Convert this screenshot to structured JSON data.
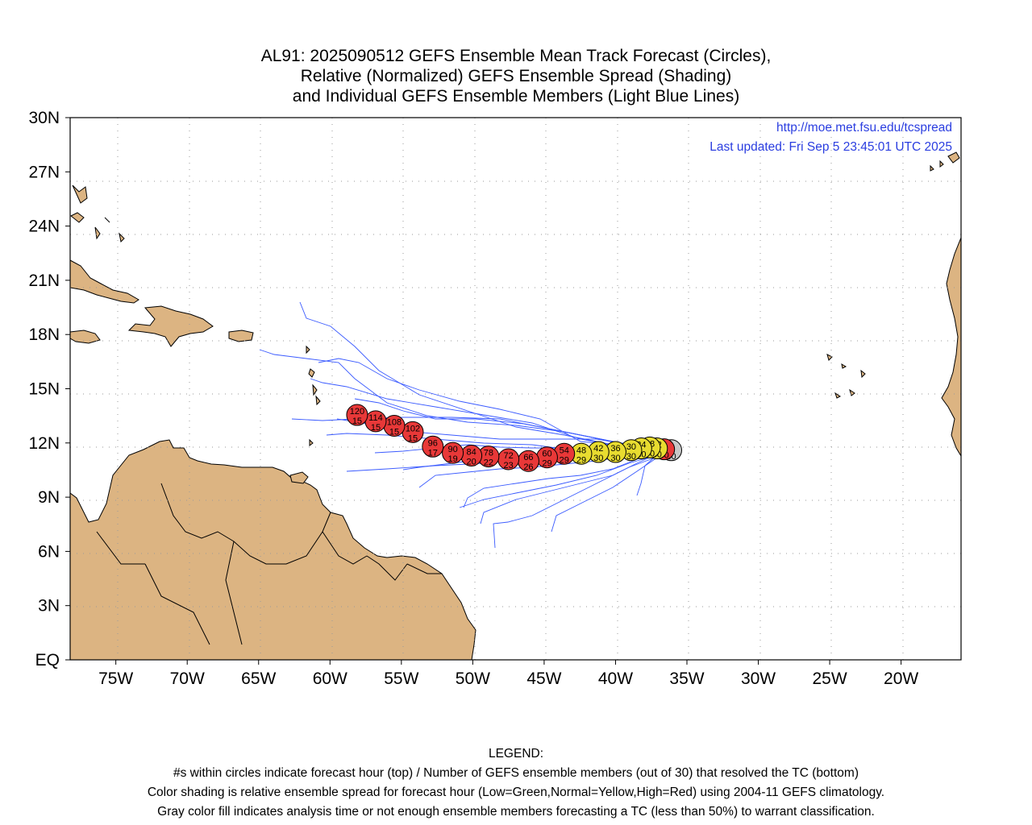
{
  "title": [
    "AL91: 2025090512 GEFS Ensemble Mean Track Forecast (Circles),",
    "Relative (Normalized) GEFS Ensemble Spread (Shading)",
    "and Individual GEFS Ensemble Members (Light Blue Lines)"
  ],
  "info": {
    "url": "http://moe.met.fsu.edu/tcspread",
    "updated": "Last updated: Fri Sep 5 23:45:01 UTC 2025"
  },
  "map": {
    "lon_range": [
      -78.2,
      -15.8
    ],
    "lat_range": [
      0,
      30
    ],
    "lat_ticks": [
      {
        "value": 30,
        "label": "30N"
      },
      {
        "value": 27,
        "label": "27N"
      },
      {
        "value": 24,
        "label": "24N"
      },
      {
        "value": 21,
        "label": "21N"
      },
      {
        "value": 18,
        "label": "18N"
      },
      {
        "value": 15,
        "label": "15N"
      },
      {
        "value": 12,
        "label": "12N"
      },
      {
        "value": 9,
        "label": "9N"
      },
      {
        "value": 6,
        "label": "6N"
      },
      {
        "value": 3,
        "label": "3N"
      },
      {
        "value": 0,
        "label": "EQ"
      }
    ],
    "lon_ticks": [
      {
        "value": -75,
        "label": "75W"
      },
      {
        "value": -70,
        "label": "70W"
      },
      {
        "value": -65,
        "label": "65W"
      },
      {
        "value": -60,
        "label": "60W"
      },
      {
        "value": -55,
        "label": "55W"
      },
      {
        "value": -50,
        "label": "50W"
      },
      {
        "value": -45,
        "label": "45W"
      },
      {
        "value": -40,
        "label": "40W"
      },
      {
        "value": -35,
        "label": "35W"
      },
      {
        "value": -30,
        "label": "30W"
      },
      {
        "value": -25,
        "label": "25W"
      },
      {
        "value": -20,
        "label": "20W"
      }
    ],
    "grid": true,
    "land_color": "#dcb482"
  },
  "colors": {
    "red": "#e83838",
    "yellow": "#e8dc30",
    "gray": "#c8c8c8",
    "member": "#3b5bff",
    "info": "#2a3de0"
  },
  "track": [
    {
      "hour": "0",
      "members": "30",
      "lon": -36.1,
      "lat": 11.6,
      "color": "gray"
    },
    {
      "hour": "6",
      "members": "30",
      "lon": -36.6,
      "lat": 11.65,
      "color": "red"
    },
    {
      "hour": "12",
      "members": "30",
      "lon": -37.1,
      "lat": 11.7,
      "color": "yellow"
    },
    {
      "hour": "18",
      "members": "30",
      "lon": -37.6,
      "lat": 11.75,
      "color": "yellow"
    },
    {
      "hour": "24",
      "members": "30",
      "lon": -38.2,
      "lat": 11.7,
      "color": "yellow"
    },
    {
      "hour": "30",
      "members": "30",
      "lon": -38.9,
      "lat": 11.6,
      "color": "yellow"
    },
    {
      "hour": "36",
      "members": "30",
      "lon": -40.0,
      "lat": 11.5,
      "color": "yellow"
    },
    {
      "hour": "42",
      "members": "30",
      "lon": -41.2,
      "lat": 11.5,
      "color": "yellow"
    },
    {
      "hour": "48",
      "members": "29",
      "lon": -42.4,
      "lat": 11.4,
      "color": "yellow"
    },
    {
      "hour": "54",
      "members": "29",
      "lon": -43.6,
      "lat": 11.4,
      "color": "red"
    },
    {
      "hour": "60",
      "members": "29",
      "lon": -44.8,
      "lat": 11.2,
      "color": "red"
    },
    {
      "hour": "66",
      "members": "26",
      "lon": -46.1,
      "lat": 11.0,
      "color": "red"
    },
    {
      "hour": "72",
      "members": "23",
      "lon": -47.5,
      "lat": 11.1,
      "color": "red"
    },
    {
      "hour": "78",
      "members": "22",
      "lon": -48.9,
      "lat": 11.25,
      "color": "red"
    },
    {
      "hour": "84",
      "members": "20",
      "lon": -50.1,
      "lat": 11.3,
      "color": "red"
    },
    {
      "hour": "90",
      "members": "19",
      "lon": -51.4,
      "lat": 11.45,
      "color": "red"
    },
    {
      "hour": "96",
      "members": "17",
      "lon": -52.8,
      "lat": 11.8,
      "color": "red"
    },
    {
      "hour": "102",
      "members": "15",
      "lon": -54.2,
      "lat": 12.6,
      "color": "red"
    },
    {
      "hour": "108",
      "members": "15",
      "lon": -55.5,
      "lat": 12.95,
      "color": "red"
    },
    {
      "hour": "114",
      "members": "15",
      "lon": -56.8,
      "lat": 13.2,
      "color": "red"
    },
    {
      "hour": "120",
      "members": "15",
      "lon": -58.1,
      "lat": 13.55,
      "color": "red"
    }
  ],
  "legend": {
    "heading": "LEGEND:",
    "lines": [
      "#s within circles indicate forecast hour (top) / Number of GEFS ensemble members (out of 30) that resolved the TC (bottom)",
      "Color shading is relative ensemble spread for forecast hour (Low=Green,Normal=Yellow,High=Red) using 2004-11 GEFS climatology.",
      "Gray color fill indicates analysis time or not enough ensemble members forecasting a TC (less than 50%) to warrant classification."
    ]
  }
}
